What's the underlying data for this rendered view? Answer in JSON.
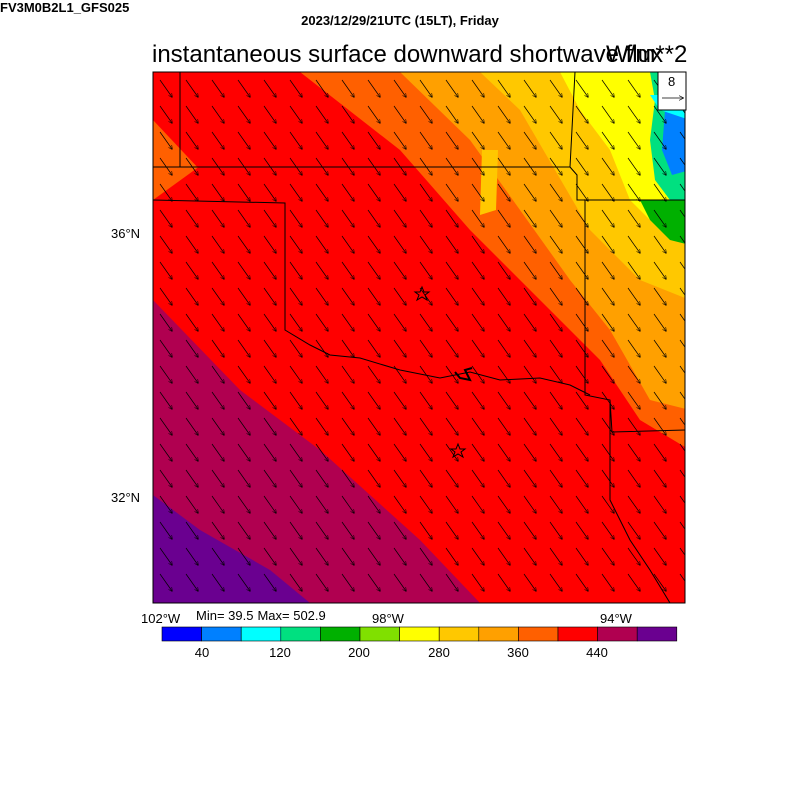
{
  "header": {
    "date_line": "2023/12/29/21UTC (15LT), Friday",
    "model_line": "FV3M0B2L1_GFS025",
    "title": "instantaneous surface downward shortwave flux",
    "units": "W/m**2"
  },
  "vector_reference": {
    "label": "8"
  },
  "axes": {
    "lat_labels": [
      "36°N",
      "32°N"
    ],
    "lon_labels": [
      "102°W",
      "98°W",
      "94°W"
    ]
  },
  "stats": {
    "min": "Min= 39.5",
    "max": "Max= 502.9"
  },
  "colorbar": {
    "colors": [
      "#0000ff",
      "#0080ff",
      "#00ffff",
      "#00e080",
      "#00b000",
      "#80e000",
      "#ffff00",
      "#ffc800",
      "#ffa000",
      "#ff6000",
      "#ff0000",
      "#b00050",
      "#6a0090"
    ],
    "labels": [
      "40",
      "120",
      "200",
      "280",
      "360",
      "440"
    ]
  },
  "icons": {
    "markers": "star-icon",
    "wind": "arrow-icon"
  }
}
